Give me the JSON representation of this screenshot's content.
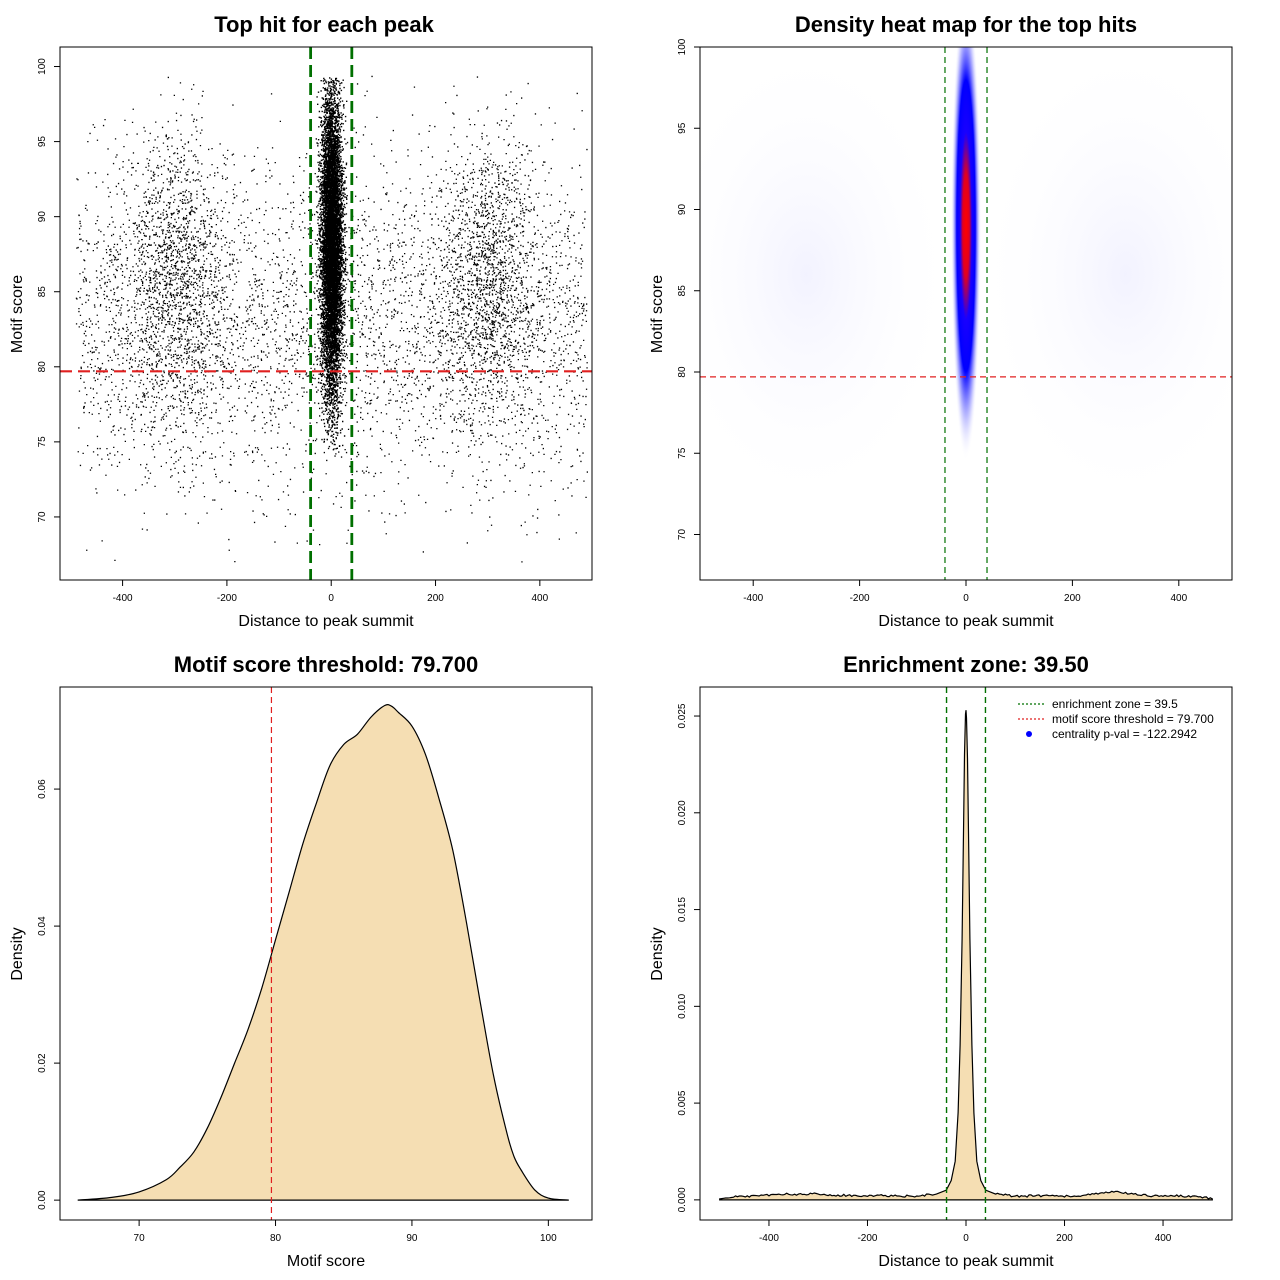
{
  "panels": {
    "scatter": {
      "title": "Top hit for each peak",
      "xlabel": "Distance to peak summit",
      "ylabel": "Motif score",
      "xlim": [
        -520,
        500
      ],
      "ylim": [
        65.8,
        101.3
      ],
      "xticks": [
        "-400",
        "-200",
        "0",
        "200",
        "400"
      ],
      "yticks": [
        "70",
        "75",
        "80",
        "85",
        "90",
        "95",
        "100"
      ],
      "threshold_line_color": "#e02020",
      "zone_line_color": "#007000"
    },
    "heatmap": {
      "title": "Density heat map for the top hits",
      "xlabel": "Distance to peak summit",
      "ylabel": "Motif score",
      "xlim": [
        -500,
        500
      ],
      "ylim": [
        67.2,
        100.0
      ],
      "xticks": [
        "-400",
        "-200",
        "0",
        "200",
        "400"
      ],
      "yticks": [
        "70",
        "75",
        "80",
        "85",
        "90",
        "95",
        "100"
      ],
      "colors": [
        "#ffffff",
        "#0000ff",
        "#ff0000"
      ]
    },
    "score_density": {
      "title": "Motif score threshold: 79.700",
      "xlabel": "Motif score",
      "ylabel": "Density",
      "xticks": [
        "70",
        "80",
        "90",
        "100"
      ],
      "yticks": [
        "0.00",
        "0.02",
        "0.04",
        "0.06"
      ],
      "fill_color": "#f5deb3"
    },
    "enrichment": {
      "title": "Enrichment zone: 39.50",
      "xlabel": "Distance to peak summit",
      "ylabel": "Density",
      "xticks": [
        "-400",
        "-200",
        "0",
        "200",
        "400"
      ],
      "yticks": [
        "0.000",
        "0.005",
        "0.010",
        "0.015",
        "0.020",
        "0.025"
      ],
      "fill_color": "#f5deb3",
      "legend": [
        {
          "label": "enrichment zone = 39.5",
          "color": "#007000",
          "style": "dotted-line"
        },
        {
          "label": "motif score threshold = 79.700",
          "color": "#e02020",
          "style": "dotted-line"
        },
        {
          "label": "centrality p-val = -122.2942",
          "color": "#0000ff",
          "style": "dot"
        }
      ]
    }
  },
  "chart_data": [
    {
      "type": "scatter",
      "title": "Top hit for each peak",
      "xlabel": "Distance to peak summit",
      "ylabel": "Motif score",
      "xlim": [
        -520,
        500
      ],
      "ylim": [
        65.8,
        101.3
      ],
      "background_points": {
        "x_range": [
          -490,
          490
        ],
        "y_mean": 83,
        "y_sd": 5.5,
        "count_estimate": 8000
      },
      "flank_clusters": [
        {
          "x_center": -300,
          "y_center": 86,
          "x_sd": 45,
          "y_sd": 5
        },
        {
          "x_center": 300,
          "y_center": 86,
          "x_sd": 45,
          "y_sd": 5
        }
      ],
      "central_cluster": {
        "x_center": 0,
        "x_sd": 10,
        "y_center": 88,
        "y_sd": 5,
        "y_range": [
          74.5,
          99.3
        ]
      },
      "hlines": [
        {
          "y": 79.7,
          "label": "motif score threshold"
        }
      ],
      "vlines": [
        {
          "x": -39.5
        },
        {
          "x": 39.5
        }
      ]
    },
    {
      "type": "heatmap",
      "title": "Density heat map for the top hits",
      "xlabel": "Distance to peak summit",
      "ylabel": "Motif score",
      "xlim": [
        -500,
        500
      ],
      "ylim": [
        67.2,
        100.0
      ],
      "peak": {
        "x": 0,
        "y": 89
      },
      "hlines": [
        {
          "y": 79.7
        }
      ],
      "vlines": [
        {
          "x": -39.5
        },
        {
          "x": 39.5
        }
      ]
    },
    {
      "type": "area",
      "title": "Motif score threshold: 79.700",
      "xlabel": "Motif score",
      "ylabel": "Density",
      "xlim": [
        64.2,
        103.2
      ],
      "ylim": [
        -0.0029,
        0.0749
      ],
      "x": [
        65.5,
        68,
        70,
        72,
        73,
        74,
        75,
        76,
        77,
        78,
        79,
        80,
        81,
        82,
        83,
        84,
        85,
        86,
        87,
        88,
        88.5,
        89,
        90,
        91,
        92,
        93,
        94,
        95,
        96,
        97,
        97.5,
        98,
        99,
        100,
        101.5
      ],
      "y": [
        0.0,
        0.0004,
        0.0012,
        0.003,
        0.0048,
        0.007,
        0.0105,
        0.015,
        0.02,
        0.025,
        0.031,
        0.038,
        0.045,
        0.052,
        0.058,
        0.0635,
        0.0665,
        0.068,
        0.0705,
        0.0722,
        0.0721,
        0.0712,
        0.0692,
        0.065,
        0.0585,
        0.051,
        0.0405,
        0.029,
        0.018,
        0.0095,
        0.0063,
        0.0044,
        0.0015,
        0.0003,
        0.0
      ],
      "vlines": [
        {
          "x": 79.7
        }
      ]
    },
    {
      "type": "area",
      "title": "Enrichment zone: 39.50",
      "xlabel": "Distance to peak summit",
      "ylabel": "Density",
      "xlim": [
        -540,
        540
      ],
      "ylim": [
        -0.00104,
        0.0265
      ],
      "x": [
        -500,
        -460,
        -420,
        -380,
        -340,
        -300,
        -260,
        -220,
        -180,
        -140,
        -100,
        -60,
        -40,
        -30,
        -22,
        -16,
        -12,
        -8,
        -5,
        -3,
        -1,
        0,
        1,
        3,
        5,
        8,
        12,
        16,
        22,
        30,
        40,
        60,
        100,
        140,
        180,
        220,
        260,
        300,
        340,
        380,
        420,
        460,
        500
      ],
      "y": [
        5e-05,
        0.0002,
        0.0002,
        0.0003,
        0.0003,
        0.0003,
        0.00025,
        0.0002,
        0.00025,
        0.0002,
        0.0002,
        0.0003,
        0.0005,
        0.001,
        0.002,
        0.0045,
        0.008,
        0.0135,
        0.019,
        0.023,
        0.0251,
        0.0253,
        0.0249,
        0.0228,
        0.019,
        0.0135,
        0.008,
        0.0045,
        0.002,
        0.001,
        0.0005,
        0.0003,
        0.0002,
        0.0002,
        0.0002,
        0.0002,
        0.0003,
        0.0004,
        0.0003,
        0.0002,
        0.0002,
        0.0002,
        5e-05
      ],
      "vlines": [
        {
          "x": -39.5
        },
        {
          "x": 39.5
        }
      ]
    }
  ]
}
